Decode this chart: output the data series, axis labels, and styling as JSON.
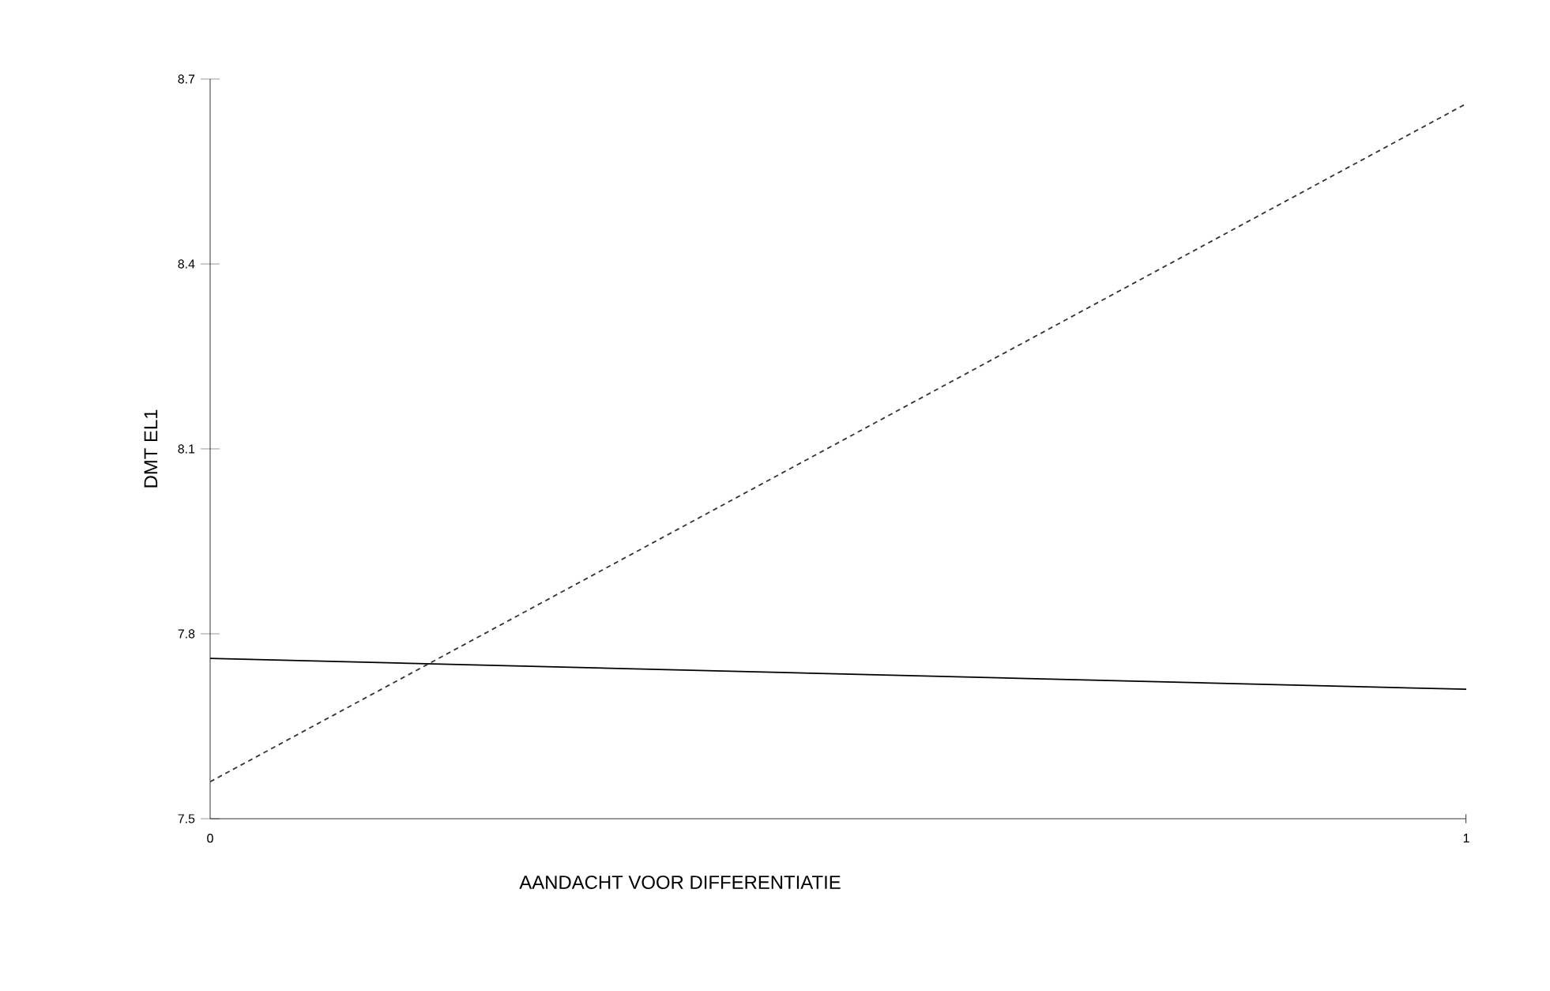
{
  "chart_data": {
    "type": "line",
    "xlabel": "AANDACHT VOOR DIFFERENTIATIE",
    "ylabel": "DMT EL1",
    "x": [
      0,
      1
    ],
    "series": [
      {
        "color": "#000000",
        "line_style": "solid",
        "values": [
          7.76,
          7.71
        ]
      },
      {
        "color": "#333333",
        "line_style": "dashed",
        "values": [
          7.56,
          8.66
        ]
      }
    ],
    "xlim": [
      0,
      1
    ],
    "xticks": [
      0,
      1
    ],
    "ylim": [
      7.5,
      8.7
    ],
    "yticks": [
      7.5,
      7.8,
      8.1,
      8.4,
      8.7
    ],
    "marker": "none"
  }
}
